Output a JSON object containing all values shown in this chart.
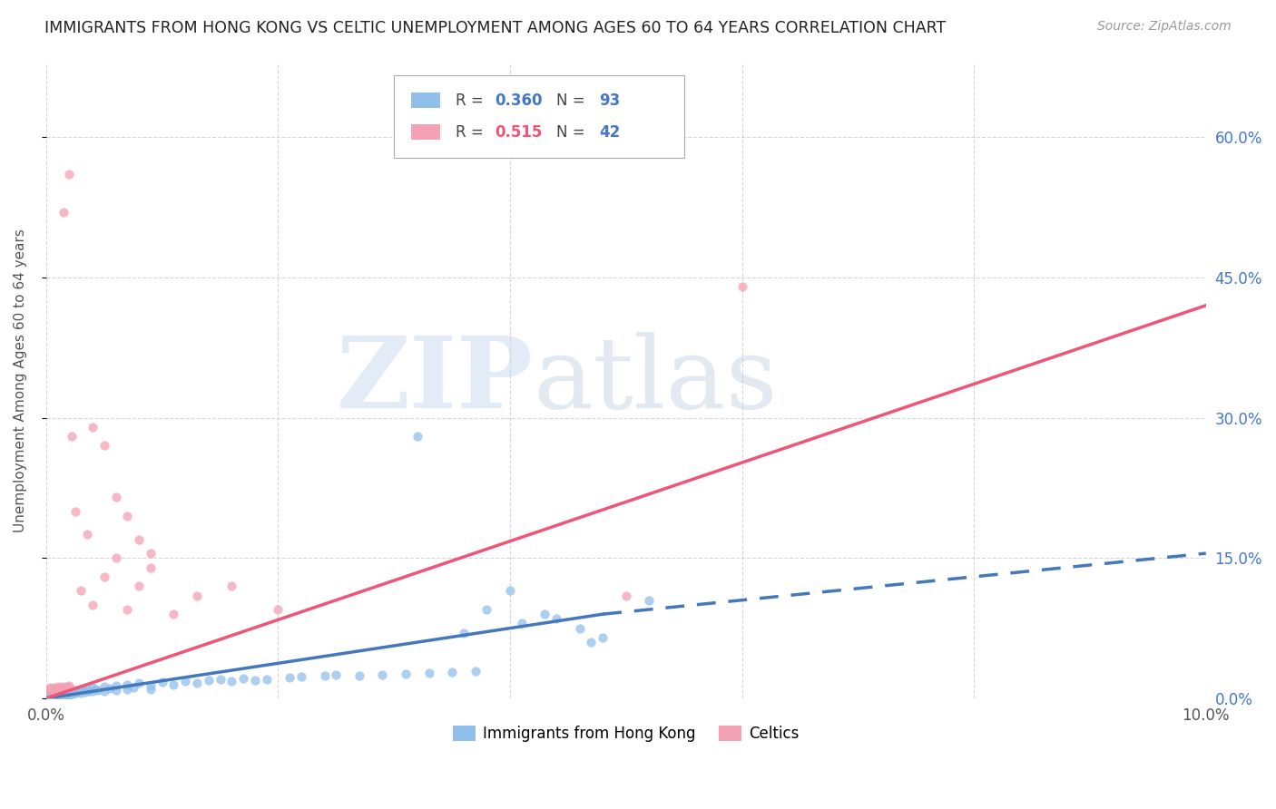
{
  "title": "IMMIGRANTS FROM HONG KONG VS CELTIC UNEMPLOYMENT AMONG AGES 60 TO 64 YEARS CORRELATION CHART",
  "source": "Source: ZipAtlas.com",
  "ylabel": "Unemployment Among Ages 60 to 64 years",
  "legend_label1": "Immigrants from Hong Kong",
  "legend_label2": "Celtics",
  "r1": 0.36,
  "n1": 93,
  "r2": 0.515,
  "n2": 42,
  "color_blue": "#90c0ea",
  "color_pink": "#f4a0b5",
  "color_blue_line": "#4477bb",
  "color_pink_line": "#ee5577",
  "color_blue_text": "#4477cc",
  "color_pink_text": "#ee5577",
  "xlim": [
    0.0,
    0.1
  ],
  "ylim": [
    0.0,
    0.68
  ],
  "yticks": [
    0.0,
    0.15,
    0.3,
    0.45,
    0.6
  ],
  "ytick_labels": [
    "0.0%",
    "15.0%",
    "30.0%",
    "45.0%",
    "60.0%"
  ],
  "blue_scatter_x": [
    0.0002,
    0.0003,
    0.0003,
    0.0004,
    0.0004,
    0.0005,
    0.0005,
    0.0005,
    0.0006,
    0.0006,
    0.0007,
    0.0007,
    0.0008,
    0.0008,
    0.0009,
    0.0009,
    0.001,
    0.001,
    0.001,
    0.0012,
    0.0012,
    0.0013,
    0.0013,
    0.0014,
    0.0015,
    0.0015,
    0.0016,
    0.0016,
    0.0017,
    0.0018,
    0.0018,
    0.0019,
    0.002,
    0.002,
    0.002,
    0.0022,
    0.0023,
    0.0024,
    0.0025,
    0.0026,
    0.0028,
    0.003,
    0.003,
    0.0032,
    0.0034,
    0.0035,
    0.0037,
    0.004,
    0.004,
    0.0042,
    0.0045,
    0.005,
    0.005,
    0.0055,
    0.006,
    0.006,
    0.007,
    0.007,
    0.0075,
    0.008,
    0.009,
    0.009,
    0.01,
    0.011,
    0.012,
    0.013,
    0.014,
    0.015,
    0.016,
    0.017,
    0.018,
    0.019,
    0.021,
    0.022,
    0.024,
    0.025,
    0.027,
    0.029,
    0.031,
    0.033,
    0.035,
    0.037,
    0.04,
    0.043,
    0.046,
    0.048,
    0.032,
    0.036,
    0.038,
    0.041,
    0.044,
    0.047,
    0.052
  ],
  "blue_scatter_y": [
    0.005,
    0.008,
    0.004,
    0.006,
    0.003,
    0.007,
    0.005,
    0.003,
    0.006,
    0.004,
    0.007,
    0.005,
    0.008,
    0.004,
    0.006,
    0.003,
    0.009,
    0.006,
    0.003,
    0.007,
    0.004,
    0.008,
    0.005,
    0.006,
    0.009,
    0.005,
    0.007,
    0.004,
    0.008,
    0.006,
    0.003,
    0.007,
    0.01,
    0.007,
    0.004,
    0.008,
    0.005,
    0.009,
    0.006,
    0.007,
    0.008,
    0.01,
    0.006,
    0.009,
    0.007,
    0.011,
    0.008,
    0.012,
    0.008,
    0.01,
    0.009,
    0.013,
    0.008,
    0.011,
    0.014,
    0.009,
    0.015,
    0.01,
    0.012,
    0.016,
    0.014,
    0.01,
    0.017,
    0.015,
    0.018,
    0.016,
    0.019,
    0.02,
    0.018,
    0.021,
    0.019,
    0.02,
    0.022,
    0.023,
    0.024,
    0.025,
    0.024,
    0.025,
    0.026,
    0.027,
    0.028,
    0.029,
    0.115,
    0.09,
    0.075,
    0.065,
    0.28,
    0.07,
    0.095,
    0.08,
    0.085,
    0.06,
    0.105
  ],
  "pink_scatter_x": [
    0.0002,
    0.0003,
    0.0004,
    0.0005,
    0.0006,
    0.0007,
    0.0008,
    0.0009,
    0.001,
    0.001,
    0.0012,
    0.0013,
    0.0014,
    0.0015,
    0.0016,
    0.0018,
    0.002,
    0.002,
    0.0022,
    0.0025,
    0.003,
    0.0035,
    0.004,
    0.005,
    0.006,
    0.007,
    0.008,
    0.009,
    0.011,
    0.013,
    0.016,
    0.02,
    0.004,
    0.005,
    0.006,
    0.007,
    0.008,
    0.009,
    0.0015,
    0.002,
    0.05,
    0.06
  ],
  "pink_scatter_y": [
    0.01,
    0.012,
    0.009,
    0.011,
    0.01,
    0.012,
    0.011,
    0.009,
    0.013,
    0.01,
    0.012,
    0.011,
    0.013,
    0.012,
    0.01,
    0.013,
    0.014,
    0.012,
    0.28,
    0.2,
    0.115,
    0.175,
    0.1,
    0.13,
    0.15,
    0.095,
    0.12,
    0.14,
    0.09,
    0.11,
    0.12,
    0.095,
    0.29,
    0.27,
    0.215,
    0.195,
    0.17,
    0.155,
    0.52,
    0.56,
    0.11,
    0.44
  ],
  "blue_line_x_solid_start": 0.0,
  "blue_line_x_solid_end": 0.048,
  "blue_line_x_dash_end": 0.1,
  "blue_line_y_at_0": 0.0,
  "blue_line_y_at_048": 0.09,
  "blue_line_y_at_10pct": 0.155,
  "pink_line_y_at_0": 0.0,
  "pink_line_y_at_10pct": 0.42,
  "watermark_zip": "ZIP",
  "watermark_atlas": "atlas",
  "background_color": "#ffffff",
  "grid_color": "#cccccc"
}
